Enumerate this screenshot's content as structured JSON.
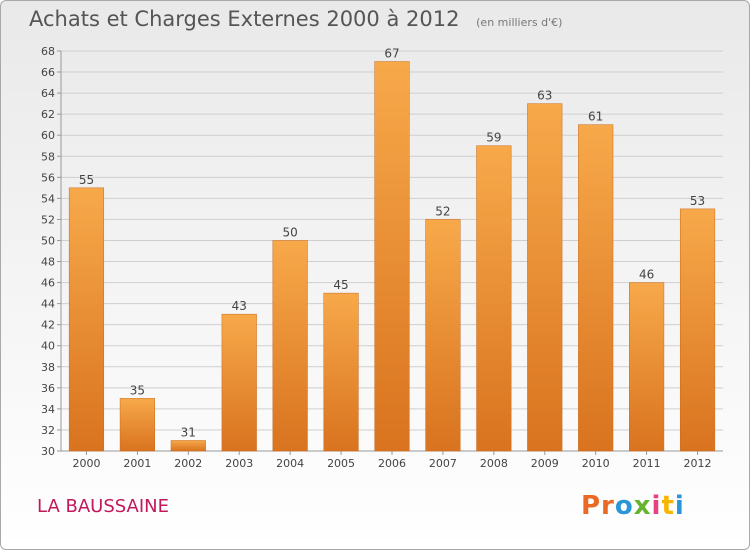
{
  "header": {
    "title": "Achats et Charges Externes 2000 à 2012",
    "subtitle": "(en milliers d'€)"
  },
  "footer": {
    "commune": "LA BAUSSAINE",
    "logo": {
      "p1": "Pr",
      "p2": "o",
      "p3": "x",
      "p4": "i",
      "p5": "t",
      "p6": "i"
    }
  },
  "colors": {
    "bar_light": "#f7a94a",
    "bar_dark": "#d9731f",
    "grid": "#cfcfcf",
    "axis": "#999999",
    "commune": "#c2185b"
  },
  "chart_data": {
    "type": "bar",
    "categories": [
      "2000",
      "2001",
      "2002",
      "2003",
      "2004",
      "2005",
      "2006",
      "2007",
      "2008",
      "2009",
      "2010",
      "2011",
      "2012"
    ],
    "values": [
      55,
      35,
      31,
      43,
      50,
      45,
      67,
      52,
      59,
      63,
      61,
      46,
      53
    ],
    "title": "Achats et Charges Externes 2000 à 2012",
    "subtitle": "(en milliers d'€)",
    "xlabel": "",
    "ylabel": "",
    "ylim": [
      30,
      68
    ],
    "yticks": [
      30,
      32,
      34,
      36,
      38,
      40,
      42,
      44,
      46,
      48,
      50,
      52,
      54,
      56,
      58,
      60,
      62,
      64,
      66,
      68
    ],
    "grid": true,
    "legend": "none"
  }
}
